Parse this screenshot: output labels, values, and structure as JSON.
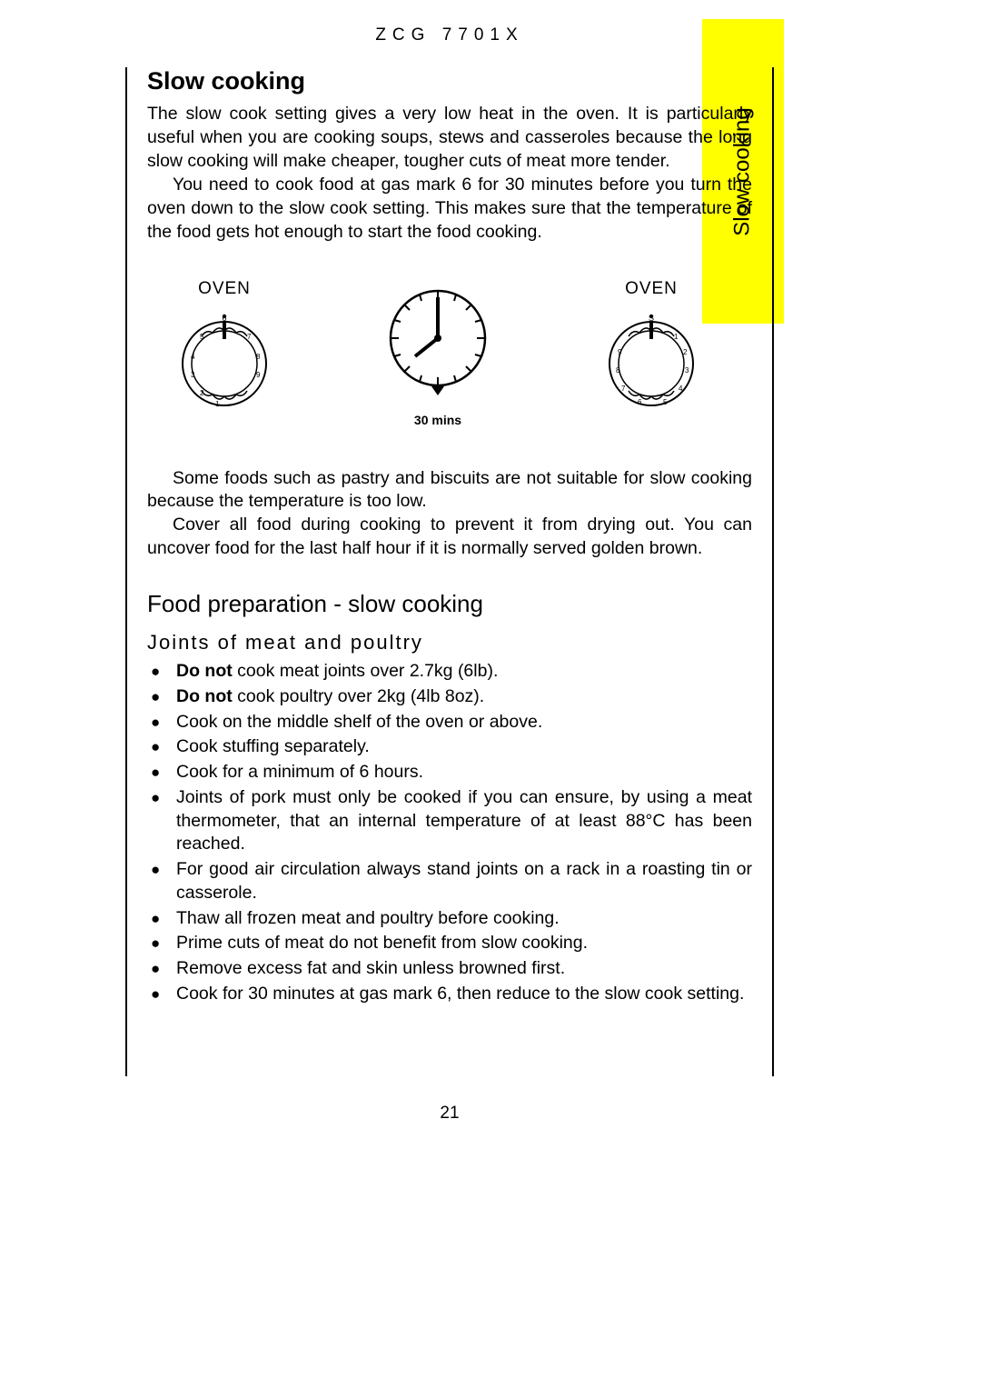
{
  "model": "ZCG 7701X",
  "sideTab": "Slow cooking",
  "sectionTitle": "Slow cooking",
  "intro": {
    "p1": "The slow cook setting gives a very low heat in the oven. It is particularly useful when you are cooking soups, stews and casseroles because the long slow cooking will make cheaper, tougher cuts of meat more tender.",
    "p2": "You need to cook food at gas mark 6 for 30 minutes before you turn the oven down to the slow cook setting. This makes sure that the temperature of the food gets hot enough to start the food cooking."
  },
  "dials": {
    "leftLabel": "OVEN",
    "rightLabel": "OVEN",
    "clockCaption": "30 mins"
  },
  "afterDials": {
    "p1": "Some foods such as pastry and biscuits are not suitable for slow cooking because the temperature is too low.",
    "p2": "Cover all food during cooking to prevent it from drying out. You can uncover food for the last half hour if it is normally served golden brown."
  },
  "h2": "Food preparation - slow cooking",
  "h3": "Joints of meat and poultry",
  "bullets": [
    {
      "bold": "Do not",
      "rest": " cook meat joints over 2.7kg (6lb)."
    },
    {
      "bold": "Do not",
      "rest": " cook poultry over 2kg (4lb 8oz)."
    },
    {
      "bold": "",
      "rest": "Cook on the middle shelf of the oven or above."
    },
    {
      "bold": "",
      "rest": "Cook stuffing separately."
    },
    {
      "bold": "",
      "rest": "Cook for a minimum of  6 hours."
    },
    {
      "bold": "",
      "rest": "Joints of pork must only be cooked if you can ensure, by using a meat thermometer, that an internal temperature of at least 88°C has been reached."
    },
    {
      "bold": "",
      "rest": "For good air circulation always stand joints on a rack in a roasting tin or casserole."
    },
    {
      "bold": "",
      "rest": "Thaw all frozen meat and poultry before cooking."
    },
    {
      "bold": "",
      "rest": "Prime cuts of meat do not benefit from slow cooking."
    },
    {
      "bold": "",
      "rest": "Remove excess fat and skin unless browned first."
    },
    {
      "bold": "",
      "rest": "Cook for 30 minutes at gas mark 6, then reduce to the slow cook setting."
    }
  ],
  "pageNumber": "21",
  "svg": {
    "dialColor": "#000000",
    "strokeWidth": 2,
    "dialOuterR": 46,
    "dialSize": 110,
    "clockSize": 120,
    "marks6": [
      "1",
      "2",
      "3",
      "4",
      "5",
      "6",
      "7",
      "8",
      "9"
    ],
    "marksS": [
      "1",
      "2",
      "3",
      "4",
      "5",
      "6",
      "7",
      "8",
      "S"
    ]
  }
}
